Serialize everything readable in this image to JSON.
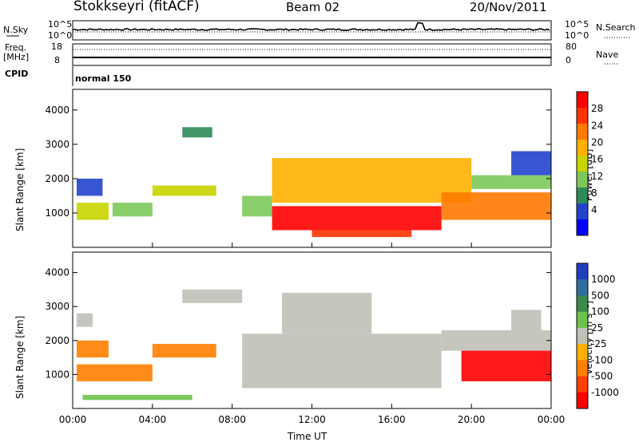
{
  "header": {
    "station": "Stokkseyri (fitACF)",
    "beam": "Beam 02",
    "date": "20/Nov/2011"
  },
  "status_panel": {
    "nsky_label": "N.Sky",
    "nsky_ticks": [
      "10^5",
      "10^0"
    ],
    "nsearch_label": "N.Search",
    "nsearch_ticks": [
      "10^5",
      "10^0"
    ],
    "freq_label": "Freq.",
    "freq_unit": "[MHz]",
    "freq_ticks": [
      "18",
      "8"
    ],
    "nave_label": "Nave",
    "nave_ticks": [
      "80",
      "0"
    ],
    "cpid_label": "CPID",
    "cpid_value": "normal 150"
  },
  "colors": {
    "velocity_gray": "#c0c0b8",
    "power_scale": [
      "#0000ff",
      "#2244cc",
      "#2e8b57",
      "#7cc95a",
      "#c8d400",
      "#ffb000",
      "#ff7a00",
      "#ff3300",
      "#ff0000"
    ],
    "velocity_scale": [
      "#1f3fbf",
      "#2f6f9f",
      "#3c8a4a",
      "#6cc24a",
      "#c0c0b8",
      "#ffb000",
      "#ff8000",
      "#ff4000",
      "#ff0000"
    ]
  },
  "chart_data": [
    {
      "type": "heatmap",
      "panel": "power",
      "ylabel": "Slant Range [km]",
      "xlabel": "Time UT",
      "x_ticks": [
        "00:00",
        "04:00",
        "08:00",
        "12:00",
        "16:00",
        "20:00",
        "00:00"
      ],
      "y_ticks": [
        "1000",
        "2000",
        "3000",
        "4000"
      ],
      "ylim": [
        0,
        4600
      ],
      "colorbar_label": "Power [dB]",
      "colorbar_ticks": [
        "28",
        "24",
        "20",
        "16",
        "12",
        "8",
        "4"
      ],
      "regions": [
        {
          "t0": 0.2,
          "t1": 1.8,
          "r0": 800,
          "r1": 1300,
          "value": 16
        },
        {
          "t0": 0.2,
          "t1": 1.5,
          "r0": 1500,
          "r1": 2000,
          "value": 8
        },
        {
          "t0": 2.0,
          "t1": 4.0,
          "r0": 900,
          "r1": 1300,
          "value": 14
        },
        {
          "t0": 4.0,
          "t1": 7.2,
          "r0": 1500,
          "r1": 1800,
          "value": 16
        },
        {
          "t0": 5.5,
          "t1": 7.0,
          "r0": 3200,
          "r1": 3500,
          "value": 10
        },
        {
          "t0": 8.5,
          "t1": 10.0,
          "r0": 900,
          "r1": 1500,
          "value": 14
        },
        {
          "t0": 10.0,
          "t1": 18.5,
          "r0": 500,
          "r1": 1200,
          "value": 28
        },
        {
          "t0": 12.0,
          "t1": 17.0,
          "r0": 300,
          "r1": 500,
          "value": 24
        },
        {
          "t0": 10.0,
          "t1": 20.0,
          "r0": 1300,
          "r1": 2600,
          "value": 20
        },
        {
          "t0": 18.5,
          "t1": 24.0,
          "r0": 800,
          "r1": 1600,
          "value": 22
        },
        {
          "t0": 20.0,
          "t1": 24.0,
          "r0": 1700,
          "r1": 2100,
          "value": 12
        },
        {
          "t0": 22.0,
          "t1": 24.0,
          "r0": 2100,
          "r1": 2800,
          "value": 8
        }
      ]
    },
    {
      "type": "heatmap",
      "panel": "velocity",
      "ylabel": "Slant Range [km]",
      "xlabel": "Time UT",
      "x_ticks": [
        "00:00",
        "04:00",
        "08:00",
        "12:00",
        "16:00",
        "20:00",
        "00:00"
      ],
      "y_ticks": [
        "1000",
        "2000",
        "3000",
        "4000"
      ],
      "ylim": [
        0,
        4600
      ],
      "colorbar_label": "Velocity [m s⁻¹]",
      "colorbar_ticks": [
        "1000",
        "500",
        "100",
        "25",
        "-25",
        "-100",
        "-500",
        "-1000"
      ],
      "regions": [
        {
          "t0": 0.2,
          "t1": 1.0,
          "r0": 2400,
          "r1": 2800,
          "value": 0
        },
        {
          "t0": 0.2,
          "t1": 1.8,
          "r0": 1500,
          "r1": 2000,
          "value": -200
        },
        {
          "t0": 0.2,
          "t1": 4.0,
          "r0": 800,
          "r1": 1300,
          "value": -150
        },
        {
          "t0": 4.0,
          "t1": 7.2,
          "r0": 1500,
          "r1": 1900,
          "value": -150
        },
        {
          "t0": 5.5,
          "t1": 8.5,
          "r0": 3100,
          "r1": 3500,
          "value": 0
        },
        {
          "t0": 8.5,
          "t1": 18.5,
          "r0": 600,
          "r1": 2200,
          "value": 0
        },
        {
          "t0": 10.5,
          "t1": 15.0,
          "r0": 2200,
          "r1": 3400,
          "value": 0
        },
        {
          "t0": 18.5,
          "t1": 24.0,
          "r0": 1700,
          "r1": 2300,
          "value": 0
        },
        {
          "t0": 19.5,
          "t1": 24.0,
          "r0": 800,
          "r1": 1700,
          "value": -600
        },
        {
          "t0": 22.0,
          "t1": 23.5,
          "r0": 2300,
          "r1": 2900,
          "value": 0
        },
        {
          "t0": 0.5,
          "t1": 6.0,
          "r0": 250,
          "r1": 400,
          "value": 50
        }
      ]
    }
  ]
}
